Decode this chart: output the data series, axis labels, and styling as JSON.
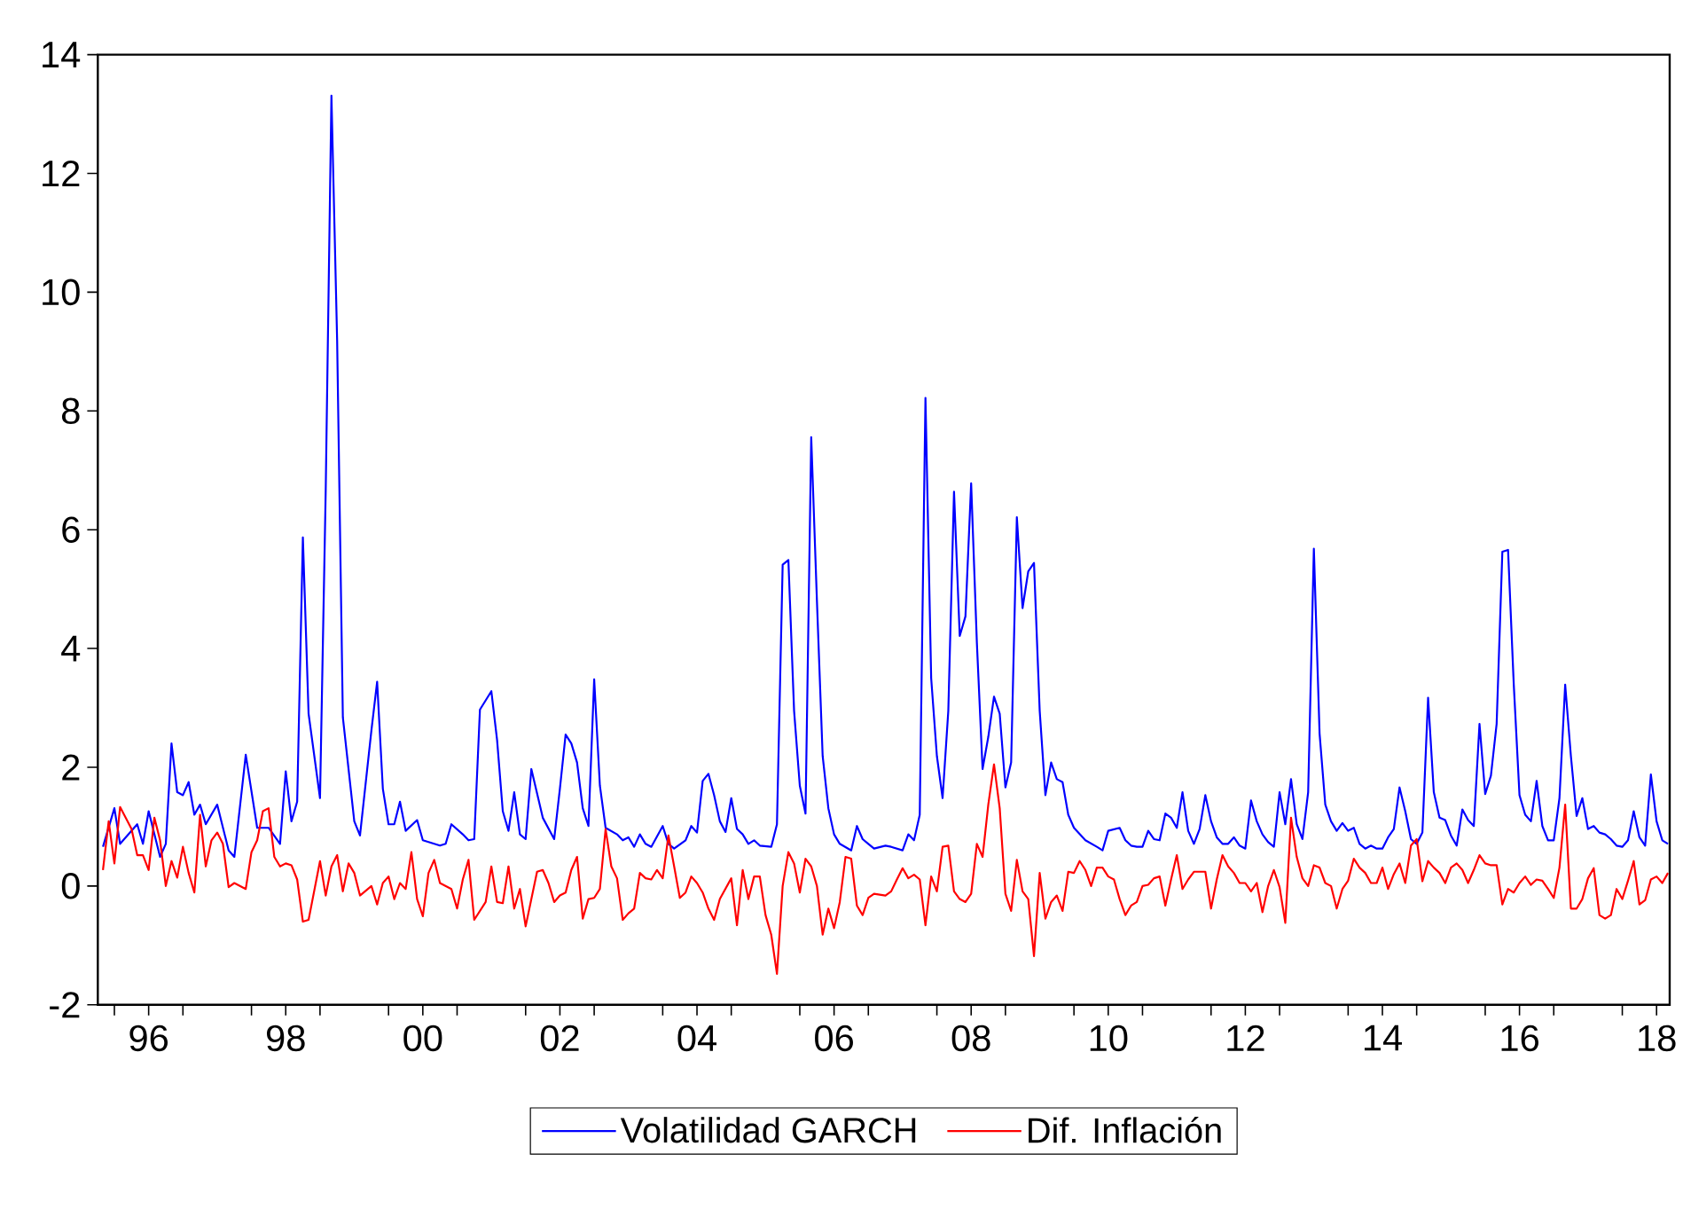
{
  "chart_data": {
    "type": "line",
    "xlim": [
      "1995-10-04",
      "2018-09-10"
    ],
    "ylim": [
      -2,
      14
    ],
    "yticks": [
      -2,
      0,
      2,
      4,
      6,
      8,
      10,
      12,
      14
    ],
    "xticks": [
      {
        "value": "1996",
        "label": null
      },
      {
        "value": "1996-07",
        "label": "96"
      },
      {
        "value": "1997",
        "label": null
      },
      {
        "value": "1998",
        "label": null
      },
      {
        "value": "1998-07",
        "label": "98"
      },
      {
        "value": "1999",
        "label": null
      },
      {
        "value": "2000",
        "label": null
      },
      {
        "value": "2000-07",
        "label": "00"
      },
      {
        "value": "2001",
        "label": null
      },
      {
        "value": "2002",
        "label": null
      },
      {
        "value": "2002-07",
        "label": "02"
      },
      {
        "value": "2003",
        "label": null
      },
      {
        "value": "2004",
        "label": null
      },
      {
        "value": "2004-07",
        "label": "04"
      },
      {
        "value": "2005",
        "label": null
      },
      {
        "value": "2006",
        "label": null
      },
      {
        "value": "2006-07",
        "label": "06"
      },
      {
        "value": "2007",
        "label": null
      },
      {
        "value": "2008",
        "label": null
      },
      {
        "value": "2008-07",
        "label": "08"
      },
      {
        "value": "2009",
        "label": null
      },
      {
        "value": "2010",
        "label": null
      },
      {
        "value": "2010-07",
        "label": "10"
      },
      {
        "value": "2011",
        "label": null
      },
      {
        "value": "2012",
        "label": null
      },
      {
        "value": "2012-07",
        "label": "12"
      },
      {
        "value": "2013",
        "label": null
      },
      {
        "value": "2014",
        "label": null
      },
      {
        "value": "2014-07",
        "label": "14"
      },
      {
        "value": "2015",
        "label": null
      },
      {
        "value": "2016",
        "label": null
      },
      {
        "value": "2016-07",
        "label": "16"
      },
      {
        "value": "2017",
        "label": null
      },
      {
        "value": "2018",
        "label": null
      },
      {
        "value": "2018-07",
        "label": "18"
      }
    ],
    "legend": "bottom",
    "grid": false,
    "marker": "none",
    "line_style": "solid",
    "series": [
      {
        "name": "Volatilidad GARCH",
        "color": "#0000ff",
        "x": [
          "1995-11",
          "1996-01",
          "1996-02",
          "1996-05",
          "1996-06",
          "1996-07",
          "1996-09",
          "1996-10",
          "1996-11",
          "1996-12",
          "1997-01",
          "1997-02",
          "1997-03",
          "1997-04",
          "1997-05",
          "1997-07",
          "1997-09",
          "1997-10",
          "1997-12",
          "1998-02",
          "1998-04",
          "1998-06",
          "1998-07",
          "1998-08",
          "1998-09",
          "1998-10",
          "1998-11",
          "1999-01",
          "1999-02",
          "1999-03",
          "1999-04",
          "1999-05",
          "1999-07",
          "1999-08",
          "1999-10",
          "1999-11",
          "1999-12",
          "2000-01",
          "2000-02",
          "2000-03",
          "2000-04",
          "2000-06",
          "2000-07",
          "2000-10",
          "2000-11",
          "2000-12",
          "2001-02",
          "2001-03",
          "2001-04",
          "2001-05",
          "2001-07",
          "2001-08",
          "2001-09",
          "2001-10",
          "2001-11",
          "2001-12",
          "2002-01",
          "2002-02",
          "2002-04",
          "2002-06",
          "2002-07",
          "2002-08",
          "2002-09",
          "2002-10",
          "2002-11",
          "2002-12",
          "2003-01",
          "2003-02",
          "2003-03",
          "2003-05",
          "2003-06",
          "2003-07",
          "2003-08",
          "2003-09",
          "2003-10",
          "2003-11",
          "2004-01",
          "2004-02",
          "2004-03",
          "2004-05",
          "2004-06",
          "2004-07",
          "2004-08",
          "2004-09",
          "2004-10",
          "2004-11",
          "2004-12",
          "2005-01",
          "2005-02",
          "2005-03",
          "2005-04",
          "2005-05",
          "2005-06",
          "2005-08",
          "2005-09",
          "2005-10",
          "2005-11",
          "2005-12",
          "2006-01",
          "2006-02",
          "2006-03",
          "2006-04",
          "2006-05",
          "2006-06",
          "2006-07",
          "2006-08",
          "2006-10",
          "2006-11",
          "2006-12",
          "2007-01",
          "2007-02",
          "2007-04",
          "2007-05",
          "2007-07",
          "2007-08",
          "2007-09",
          "2007-10",
          "2007-11",
          "2007-12",
          "2008-01",
          "2008-02",
          "2008-03",
          "2008-04",
          "2008-05",
          "2008-06",
          "2008-07",
          "2008-08",
          "2008-09",
          "2008-10",
          "2008-11",
          "2008-12",
          "2009-01",
          "2009-02",
          "2009-03",
          "2009-04",
          "2009-05",
          "2009-06",
          "2009-07",
          "2009-08",
          "2009-09",
          "2009-10",
          "2009-11",
          "2009-12",
          "2010-01",
          "2010-03",
          "2010-05",
          "2010-06",
          "2010-07",
          "2010-09",
          "2010-10",
          "2010-11",
          "2010-12",
          "2011-01",
          "2011-02",
          "2011-03",
          "2011-04",
          "2011-05",
          "2011-06",
          "2011-07",
          "2011-08",
          "2011-09",
          "2011-10",
          "2011-11",
          "2011-12",
          "2012-01",
          "2012-02",
          "2012-03",
          "2012-04",
          "2012-05",
          "2012-06",
          "2012-07",
          "2012-08",
          "2012-09",
          "2012-10",
          "2012-11",
          "2012-12",
          "2013-01",
          "2013-02",
          "2013-03",
          "2013-04",
          "2013-05",
          "2013-06",
          "2013-07",
          "2013-08",
          "2013-09",
          "2013-10",
          "2013-11",
          "2013-12",
          "2014-01",
          "2014-02",
          "2014-03",
          "2014-04",
          "2014-05",
          "2014-06",
          "2014-07",
          "2014-08",
          "2014-09",
          "2014-10",
          "2014-11",
          "2014-12",
          "2015-01",
          "2015-02",
          "2015-03",
          "2015-04",
          "2015-05",
          "2015-06",
          "2015-07",
          "2015-08",
          "2015-09",
          "2015-10",
          "2015-11",
          "2015-12",
          "2016-01",
          "2016-02",
          "2016-03",
          "2016-04",
          "2016-05",
          "2016-06",
          "2016-07",
          "2016-08",
          "2016-09",
          "2016-10",
          "2016-11",
          "2016-12",
          "2017-01",
          "2017-02",
          "2017-03",
          "2017-04",
          "2017-05",
          "2017-06",
          "2017-07",
          "2017-08",
          "2017-09",
          "2017-10",
          "2017-11",
          "2017-12",
          "2018-01",
          "2018-02",
          "2018-03",
          "2018-04",
          "2018-05",
          "2018-06",
          "2018-07",
          "2018-08",
          "2018-09"
        ],
        "values": [
          0.66,
          1.31,
          0.71,
          1.04,
          0.71,
          1.26,
          0.49,
          0.71,
          2.4,
          1.58,
          1.53,
          1.75,
          1.2,
          1.37,
          1.04,
          1.37,
          0.6,
          0.49,
          2.21,
          0.98,
          0.98,
          0.71,
          1.93,
          1.09,
          1.42,
          5.87,
          2.9,
          1.48,
          6.67,
          13.31,
          9.18,
          2.84,
          1.09,
          0.85,
          2.62,
          3.44,
          1.64,
          1.04,
          1.04,
          1.42,
          0.93,
          1.11,
          0.77,
          0.68,
          0.71,
          1.04,
          0.87,
          0.77,
          0.79,
          2.97,
          3.28,
          2.46,
          1.26,
          0.93,
          1.58,
          0.87,
          0.79,
          1.97,
          1.15,
          0.79,
          1.64,
          2.55,
          2.4,
          2.08,
          1.31,
          1.01,
          3.48,
          1.69,
          0.98,
          0.87,
          0.77,
          0.82,
          0.66,
          0.87,
          0.71,
          0.66,
          1.01,
          0.71,
          0.63,
          0.77,
          1.01,
          0.9,
          1.77,
          1.89,
          1.53,
          1.09,
          0.91,
          1.48,
          0.96,
          0.87,
          0.71,
          0.77,
          0.68,
          0.66,
          1.04,
          5.41,
          5.49,
          2.95,
          1.69,
          1.22,
          7.56,
          4.8,
          2.19,
          1.31,
          0.87,
          0.71,
          0.6,
          1.01,
          0.79,
          0.71,
          0.63,
          0.68,
          0.66,
          0.6,
          0.87,
          0.77,
          1.2,
          8.22,
          3.5,
          2.19,
          1.48,
          2.95,
          6.64,
          4.21,
          4.54,
          6.78,
          4.1,
          1.97,
          2.51,
          3.19,
          2.9,
          1.66,
          2.08,
          6.21,
          4.68,
          5.3,
          5.44,
          2.95,
          1.53,
          2.08,
          1.8,
          1.75,
          1.2,
          0.98,
          0.77,
          0.66,
          0.6,
          0.93,
          0.98,
          0.77,
          0.68,
          0.66,
          0.66,
          0.93,
          0.79,
          0.77,
          1.22,
          1.15,
          0.98,
          1.58,
          0.93,
          0.71,
          0.96,
          1.53,
          1.09,
          0.82,
          0.71,
          0.71,
          0.82,
          0.68,
          0.63,
          1.44,
          1.09,
          0.87,
          0.74,
          0.66,
          1.58,
          1.04,
          1.8,
          1.04,
          0.79,
          1.58,
          5.68,
          2.57,
          1.37,
          1.09,
          0.93,
          1.06,
          0.93,
          0.98,
          0.71,
          0.63,
          0.68,
          0.63,
          0.63,
          0.82,
          0.96,
          1.66,
          1.26,
          0.79,
          0.71,
          0.9,
          3.17,
          1.58,
          1.15,
          1.11,
          0.85,
          0.68,
          1.29,
          1.11,
          1.01,
          2.73,
          1.55,
          1.86,
          2.73,
          5.63,
          5.66,
          3.39,
          1.53,
          1.2,
          1.09,
          1.77,
          1.01,
          0.77,
          0.77,
          1.48,
          3.39,
          2.19,
          1.18,
          1.48,
          0.96,
          1.01,
          0.9,
          0.87,
          0.79,
          0.68,
          0.66,
          0.77,
          1.26,
          0.82,
          0.68,
          1.88,
          1.09,
          0.77,
          0.71
        ]
      },
      {
        "name": "Dif. Inflación",
        "color": "#ff0000",
        "x": [
          "1995-11",
          "1995-12",
          "1996-01",
          "1996-02",
          "1996-04",
          "1996-05",
          "1996-06",
          "1996-07",
          "1996-08",
          "1996-09",
          "1996-10",
          "1996-11",
          "1996-12",
          "1997-01",
          "1997-02",
          "1997-03",
          "1997-04",
          "1997-05",
          "1997-06",
          "1997-07",
          "1997-08",
          "1997-09",
          "1997-10",
          "1997-12",
          "1998-01",
          "1998-02",
          "1998-03",
          "1998-04",
          "1998-05",
          "1998-06",
          "1998-07",
          "1998-08",
          "1998-09",
          "1998-10",
          "1998-11",
          "1999-01",
          "1999-02",
          "1999-03",
          "1999-04",
          "1999-05",
          "1999-06",
          "1999-07",
          "1999-08",
          "1999-10",
          "1999-11",
          "1999-12",
          "2000-01",
          "2000-02",
          "2000-03",
          "2000-04",
          "2000-05",
          "2000-06",
          "2000-07",
          "2000-08",
          "2000-09",
          "2000-10",
          "2000-12",
          "2001-01",
          "2001-02",
          "2001-03",
          "2001-04",
          "2001-06",
          "2001-07",
          "2001-08",
          "2001-09",
          "2001-10",
          "2001-11",
          "2001-12",
          "2002-01",
          "2002-02",
          "2002-03",
          "2002-04",
          "2002-05",
          "2002-06",
          "2002-07",
          "2002-08",
          "2002-09",
          "2002-10",
          "2002-11",
          "2002-12",
          "2003-01",
          "2003-02",
          "2003-03",
          "2003-04",
          "2003-05",
          "2003-06",
          "2003-07",
          "2003-08",
          "2003-09",
          "2003-10",
          "2003-11",
          "2003-12",
          "2004-01",
          "2004-02",
          "2004-03",
          "2004-04",
          "2004-05",
          "2004-06",
          "2004-07",
          "2004-08",
          "2004-09",
          "2004-10",
          "2004-11",
          "2005-01",
          "2005-02",
          "2005-03",
          "2005-04",
          "2005-05",
          "2005-06",
          "2005-07",
          "2005-08",
          "2005-09",
          "2005-10",
          "2005-11",
          "2005-12",
          "2006-01",
          "2006-02",
          "2006-03",
          "2006-04",
          "2006-05",
          "2006-06",
          "2006-07",
          "2006-08",
          "2006-09",
          "2006-10",
          "2006-11",
          "2006-12",
          "2007-01",
          "2007-02",
          "2007-04",
          "2007-05",
          "2007-06",
          "2007-07",
          "2007-08",
          "2007-09",
          "2007-10",
          "2007-11",
          "2007-12",
          "2008-01",
          "2008-02",
          "2008-03",
          "2008-04",
          "2008-05",
          "2008-06",
          "2008-07",
          "2008-08",
          "2008-09",
          "2008-10",
          "2008-11",
          "2008-12",
          "2009-01",
          "2009-02",
          "2009-03",
          "2009-04",
          "2009-05",
          "2009-06",
          "2009-07",
          "2009-08",
          "2009-09",
          "2009-10",
          "2009-11",
          "2009-12",
          "2010-01",
          "2010-02",
          "2010-03",
          "2010-04",
          "2010-05",
          "2010-06",
          "2010-07",
          "2010-08",
          "2010-09",
          "2010-10",
          "2010-11",
          "2010-12",
          "2011-01",
          "2011-02",
          "2011-03",
          "2011-04",
          "2011-05",
          "2011-06",
          "2011-07",
          "2011-08",
          "2011-09",
          "2011-10",
          "2011-12",
          "2012-01",
          "2012-02",
          "2012-03",
          "2012-04",
          "2012-05",
          "2012-06",
          "2012-07",
          "2012-08",
          "2012-09",
          "2012-10",
          "2012-11",
          "2012-12",
          "2013-01",
          "2013-02",
          "2013-03",
          "2013-04",
          "2013-05",
          "2013-06",
          "2013-07",
          "2013-08",
          "2013-09",
          "2013-10",
          "2013-11",
          "2013-12",
          "2014-01",
          "2014-02",
          "2014-03",
          "2014-04",
          "2014-05",
          "2014-06",
          "2014-07",
          "2014-08",
          "2014-09",
          "2014-10",
          "2014-11",
          "2014-12",
          "2015-01",
          "2015-02",
          "2015-03",
          "2015-04",
          "2015-05",
          "2015-06",
          "2015-07",
          "2015-08",
          "2015-09",
          "2015-10",
          "2015-11",
          "2015-12",
          "2016-01",
          "2016-02",
          "2016-03",
          "2016-04",
          "2016-05",
          "2016-06",
          "2016-07",
          "2016-08",
          "2016-09",
          "2016-10",
          "2016-11",
          "2016-12",
          "2017-01",
          "2017-02",
          "2017-03",
          "2017-04",
          "2017-05",
          "2017-06",
          "2017-07",
          "2017-08",
          "2017-09",
          "2017-10",
          "2017-11",
          "2017-12",
          "2018-01",
          "2018-02",
          "2018-03",
          "2018-04",
          "2018-05",
          "2018-06",
          "2018-07",
          "2018-08",
          "2018-09"
        ],
        "values": [
          0.27,
          1.09,
          0.38,
          1.33,
          0.96,
          0.52,
          0.52,
          0.27,
          1.15,
          0.77,
          0.0,
          0.42,
          0.14,
          0.66,
          0.22,
          -0.11,
          1.2,
          0.33,
          0.77,
          0.9,
          0.71,
          -0.02,
          0.05,
          -0.05,
          0.57,
          0.77,
          1.26,
          1.31,
          0.49,
          0.33,
          0.38,
          0.35,
          0.11,
          -0.6,
          -0.57,
          0.42,
          -0.16,
          0.33,
          0.52,
          -0.09,
          0.38,
          0.22,
          -0.16,
          0.0,
          -0.31,
          0.05,
          0.16,
          -0.22,
          0.05,
          -0.05,
          0.57,
          -0.22,
          -0.51,
          0.22,
          0.44,
          0.05,
          -0.05,
          -0.38,
          0.11,
          0.44,
          -0.57,
          -0.27,
          0.33,
          -0.27,
          -0.29,
          0.33,
          -0.38,
          -0.05,
          -0.68,
          -0.22,
          0.24,
          0.27,
          0.05,
          -0.27,
          -0.16,
          -0.11,
          0.27,
          0.49,
          -0.55,
          -0.22,
          -0.2,
          -0.05,
          0.96,
          0.33,
          0.13,
          -0.57,
          -0.46,
          -0.38,
          0.22,
          0.13,
          0.11,
          0.27,
          0.13,
          0.85,
          0.33,
          -0.2,
          -0.11,
          0.16,
          0.05,
          -0.11,
          -0.38,
          -0.57,
          -0.22,
          0.13,
          -0.66,
          0.27,
          -0.22,
          0.16,
          0.16,
          -0.49,
          -0.82,
          -1.48,
          0.0,
          0.57,
          0.38,
          -0.11,
          0.46,
          0.33,
          0.0,
          -0.82,
          -0.38,
          -0.71,
          -0.27,
          0.49,
          0.46,
          -0.33,
          -0.49,
          -0.2,
          -0.13,
          -0.16,
          -0.09,
          0.11,
          0.3,
          0.13,
          0.19,
          0.11,
          -0.66,
          0.16,
          -0.09,
          0.66,
          0.68,
          -0.09,
          -0.22,
          -0.27,
          -0.13,
          0.71,
          0.49,
          1.37,
          2.05,
          1.31,
          -0.13,
          -0.42,
          0.44,
          -0.09,
          -0.22,
          -1.18,
          0.22,
          -0.55,
          -0.27,
          -0.16,
          -0.42,
          0.24,
          0.22,
          0.42,
          0.27,
          0.0,
          0.31,
          0.31,
          0.16,
          0.11,
          -0.22,
          -0.49,
          -0.33,
          -0.27,
          0.0,
          0.02,
          0.13,
          0.16,
          -0.33,
          0.11,
          0.52,
          -0.05,
          0.11,
          0.24,
          0.24,
          -0.38,
          0.11,
          0.52,
          0.33,
          0.22,
          0.05,
          0.05,
          -0.09,
          0.05,
          -0.44,
          0.0,
          0.27,
          -0.02,
          -0.62,
          1.15,
          0.49,
          0.13,
          0.0,
          0.35,
          0.31,
          0.05,
          0.0,
          -0.38,
          -0.05,
          0.09,
          0.46,
          0.31,
          0.22,
          0.05,
          0.05,
          0.31,
          -0.05,
          0.2,
          0.38,
          0.05,
          0.68,
          0.79,
          0.08,
          0.42,
          0.31,
          0.22,
          0.05,
          0.31,
          0.38,
          0.27,
          0.05,
          0.27,
          0.52,
          0.38,
          0.35,
          0.35,
          -0.31,
          -0.05,
          -0.11,
          0.05,
          0.16,
          0.02,
          0.11,
          0.09,
          -0.05,
          -0.2,
          0.31,
          1.37,
          -0.38,
          -0.38,
          -0.22,
          0.13,
          0.3,
          -0.49,
          -0.55,
          -0.49,
          -0.05,
          -0.22,
          0.09,
          0.42,
          -0.31,
          -0.24,
          0.11,
          0.16,
          0.05,
          0.22
        ]
      }
    ]
  }
}
